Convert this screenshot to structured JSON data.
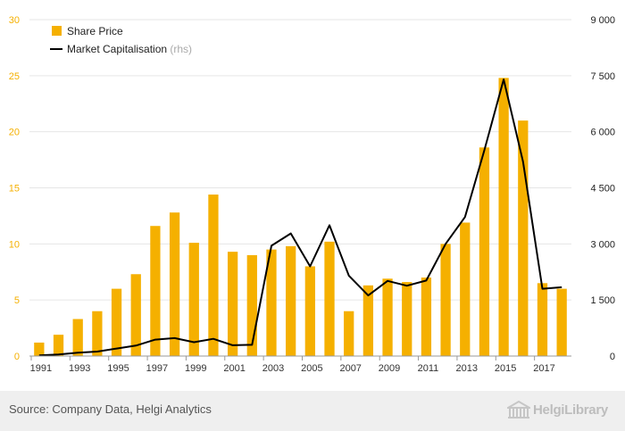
{
  "chart_data": {
    "type": "bar",
    "categories": [
      "1991",
      "1992",
      "1993",
      "1994",
      "1995",
      "1996",
      "1997",
      "1998",
      "1999",
      "2000",
      "2001",
      "2002",
      "2003",
      "2004",
      "2005",
      "2006",
      "2007",
      "2008",
      "2009",
      "2010",
      "2011",
      "2012",
      "2013",
      "2014",
      "2015",
      "2016",
      "2017",
      "2018"
    ],
    "x_tick_labels": [
      "1991",
      "1993",
      "1995",
      "1997",
      "1999",
      "2001",
      "2003",
      "2005",
      "2007",
      "2009",
      "2011",
      "2013",
      "2015",
      "2017"
    ],
    "series": [
      {
        "name": "Share Price",
        "axis": "left",
        "type": "bar",
        "color": "#f5b000",
        "values": [
          1.2,
          1.9,
          3.3,
          4.0,
          6.0,
          7.3,
          11.6,
          12.8,
          10.1,
          14.4,
          9.3,
          9.0,
          9.5,
          9.8,
          8.0,
          10.2,
          4.0,
          6.3,
          6.9,
          6.6,
          7.0,
          10.0,
          11.9,
          18.6,
          24.8,
          21.0,
          6.5,
          6.0
        ]
      },
      {
        "name": "Market Capitalisation",
        "name_suffix": "(rhs)",
        "axis": "right",
        "type": "line",
        "color": "#000000",
        "values": [
          20,
          40,
          90,
          120,
          200,
          280,
          440,
          480,
          370,
          460,
          290,
          300,
          2950,
          3280,
          2400,
          3500,
          2150,
          1620,
          2010,
          1880,
          2020,
          3000,
          3720,
          5500,
          7400,
          5200,
          1800,
          1840
        ]
      }
    ],
    "y_left": {
      "min": 0,
      "max": 30,
      "ticks": [
        "0",
        "5",
        "10",
        "15",
        "20",
        "25",
        "30"
      ],
      "tick_color": "#f5b000"
    },
    "y_right": {
      "min": 0,
      "max": 9000,
      "ticks": [
        "0",
        "1 500",
        "3 000",
        "4 500",
        "6 000",
        "7 500",
        "9 000"
      ]
    },
    "grid": true,
    "legend": "top-left"
  },
  "footer": {
    "source": "Source: Company Data, Helgi Analytics",
    "logo": "HelgiLibrary"
  }
}
